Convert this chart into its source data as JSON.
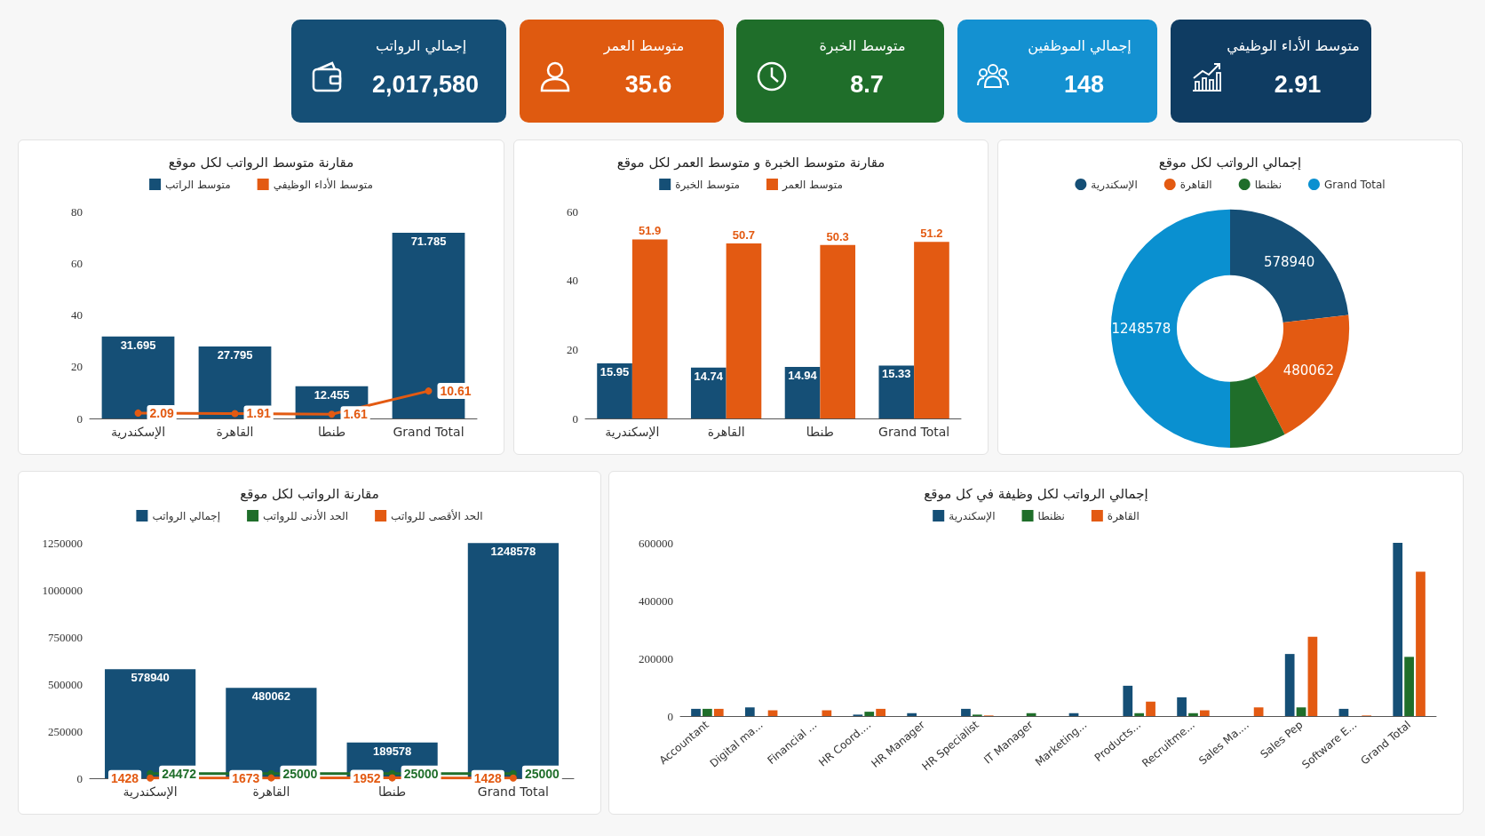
{
  "chart_data": [
    {
      "type": "other",
      "categories": [
        "إجمالي الرواتب",
        "متوسط العمر",
        "متوسط الخبرة",
        "إجمالي الموظفين",
        "متوسط الأداء الوظيفي"
      ],
      "value_labels": [
        "2,017,580",
        "35.6",
        "8.7",
        "148",
        "2.91"
      ],
      "colors": [
        "#154f76",
        "#df5a10",
        "#1f6e2a",
        "#1491d1",
        "#0f3c62"
      ]
    },
    {
      "type": "bar",
      "title": "مقارنة متوسط الرواتب لكل موقع",
      "categories": [
        "الإسكندرية",
        "القاهرة",
        "طنطا",
        "Grand Total"
      ],
      "series": [
        {
          "name": "متوسط الراتب",
          "color": "#154f76",
          "type": "bar",
          "values": [
            31.695,
            27.795,
            12.455,
            71.785
          ]
        },
        {
          "name": "متوسط الأداء الوظيفي",
          "color": "#e35a12",
          "type": "line",
          "values": [
            2.09,
            1.91,
            1.61,
            10.61
          ]
        }
      ],
      "ylim": [
        0,
        80
      ],
      "yticks": [
        0,
        20,
        40,
        60,
        80
      ],
      "legend": "top",
      "data_labels": true,
      "marker": "circle"
    },
    {
      "type": "bar",
      "title": "مقارنة متوسط الخبرة و متوسط العمر لكل موقع",
      "categories": [
        "الإسكندرية",
        "القاهرة",
        "طنطا",
        "Grand Total"
      ],
      "series": [
        {
          "name": "متوسط الخبرة",
          "color": "#154f76",
          "values": [
            15.95,
            14.74,
            14.94,
            15.33
          ]
        },
        {
          "name": "متوسط العمر",
          "color": "#e35a12",
          "values": [
            51.9,
            50.7,
            50.3,
            51.2
          ]
        }
      ],
      "ylim": [
        0,
        60
      ],
      "yticks": [
        0,
        20,
        40,
        60
      ],
      "legend": "top",
      "data_labels": true
    },
    {
      "type": "donut",
      "title": "إجمالي الرواتب لكل موقع",
      "categories": [
        "الإسكندرية",
        "القاهرة",
        "نظنطا",
        "Grand Total"
      ],
      "values": [
        578940,
        480062,
        189578,
        1248578
      ],
      "value_labels": [
        "578940",
        "480062",
        null,
        "1248578"
      ],
      "colors": [
        "#154f76",
        "#e35a12",
        "#1f6e2a",
        "#0a90d0"
      ],
      "legend": "top"
    },
    {
      "type": "bar",
      "title": "مقارنة الرواتب لكل موقع",
      "categories": [
        "الإسكندرية",
        "القاهرة",
        "طنطا",
        "Grand Total"
      ],
      "series": [
        {
          "name": "إجمالي الرواتب",
          "color": "#154f76",
          "type": "bar",
          "values": [
            578940,
            480062,
            189578,
            1248578
          ]
        },
        {
          "name": "الحد الأدنى للرواتب",
          "color": "#1f6e2a",
          "type": "line",
          "values": [
            24472,
            25000,
            25000,
            25000
          ]
        },
        {
          "name": "الحد الأقصى للرواتب",
          "color": "#e35a12",
          "type": "line",
          "values": [
            1428,
            1673,
            1952,
            1428
          ]
        }
      ],
      "ylim": [
        0,
        1250000
      ],
      "yticks": [
        0,
        250000,
        500000,
        750000,
        1000000,
        1250000
      ],
      "legend": "top",
      "data_labels": true,
      "marker": "circle"
    },
    {
      "type": "bar",
      "title": "إجمالي الرواتب لكل وظيفة في كل موقع",
      "categories": [
        "Accountant",
        "Digital ma...",
        "Financial ...",
        "HR Coord....",
        "HR Manager",
        "HR Specialist",
        "IT Manager",
        "Marketing...",
        "Products...",
        "Recruitme...",
        "Sales Ma....",
        "Sales Pep",
        "Software E...",
        "Grand Total"
      ],
      "series": [
        {
          "name": "الإسكندرية",
          "color": "#154f76",
          "values": [
            25000,
            30000,
            null,
            5000,
            10000,
            25000,
            null,
            10000,
            105000,
            65000,
            null,
            215000,
            25000,
            600000
          ]
        },
        {
          "name": "نظنطا",
          "color": "#1f6e2a",
          "values": [
            25000,
            null,
            null,
            15000,
            null,
            5000,
            10000,
            null,
            10000,
            10000,
            null,
            30000,
            null,
            205000
          ]
        },
        {
          "name": "القاهرة",
          "color": "#e35a12",
          "values": [
            25000,
            20000,
            20000,
            25000,
            null,
            2000,
            null,
            null,
            50000,
            20000,
            30000,
            275000,
            2000,
            500000
          ]
        }
      ],
      "ylim": [
        0,
        600000
      ],
      "yticks": [
        0,
        200000,
        400000,
        600000
      ],
      "legend": "top"
    }
  ]
}
